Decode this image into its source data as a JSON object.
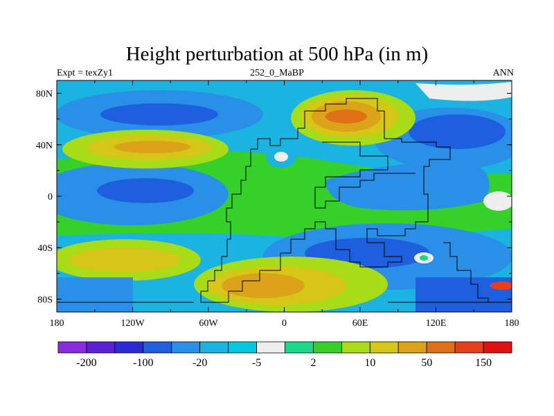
{
  "title": "Height perturbation at 500 hPa (in m)",
  "left_string": "Expt = texZy1",
  "center_string": "252_0_MaBP",
  "right_string": "ANN",
  "lon_ticks": [
    "180",
    "120W",
    "60W",
    "0",
    "60E",
    "120E",
    "180"
  ],
  "lat_ticks": [
    "80N",
    "40N",
    "0",
    "40S",
    "80S"
  ],
  "colorbar": {
    "colors": [
      "#8a2be2",
      "#5a1fd6",
      "#2b2bd6",
      "#1e5fe0",
      "#2a8fe6",
      "#1bb3e0",
      "#00c8e0",
      "#eeeeee",
      "#1ed88a",
      "#36d02a",
      "#a8dc18",
      "#d6c618",
      "#dca21a",
      "#e07018",
      "#e6401a",
      "#e01010"
    ],
    "labels": [
      {
        "text": "-200",
        "after_box": 1
      },
      {
        "text": "-100",
        "after_box": 3
      },
      {
        "text": "-20",
        "after_box": 5
      },
      {
        "text": "-5",
        "after_box": 7
      },
      {
        "text": "2",
        "after_box": 9
      },
      {
        "text": "10",
        "after_box": 11
      },
      {
        "text": "50",
        "after_box": 13
      },
      {
        "text": "150",
        "after_box": 15
      }
    ]
  }
}
